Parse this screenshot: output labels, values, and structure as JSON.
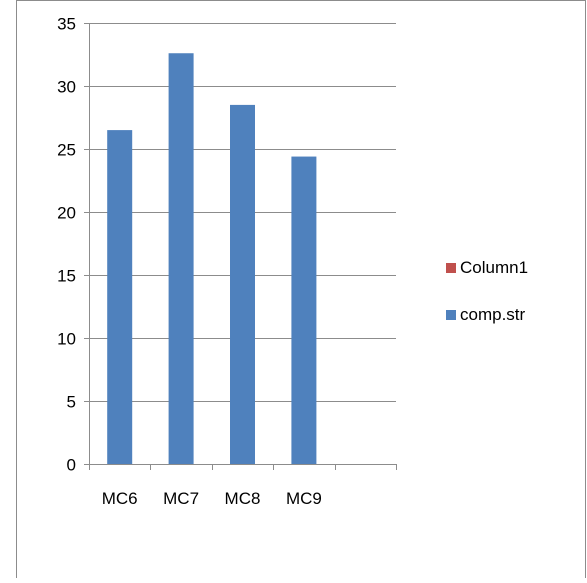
{
  "chart_data": {
    "type": "bar",
    "categories": [
      "MC6",
      "MC7",
      "MC8",
      "MC9",
      ""
    ],
    "series": [
      {
        "name": "Column1",
        "color": "#c0504d",
        "values": [
          null,
          null,
          null,
          null,
          null
        ]
      },
      {
        "name": "comp.str",
        "color": "#4f81bd",
        "values": [
          26.5,
          32.6,
          28.5,
          24.4,
          null
        ]
      }
    ],
    "y_ticks": [
      "0",
      "5",
      "10",
      "15",
      "20",
      "25",
      "30",
      "35"
    ],
    "ylim": [
      0,
      35
    ],
    "title": "",
    "xlabel": "",
    "ylabel": "",
    "grid": true,
    "legend_position": "right"
  }
}
